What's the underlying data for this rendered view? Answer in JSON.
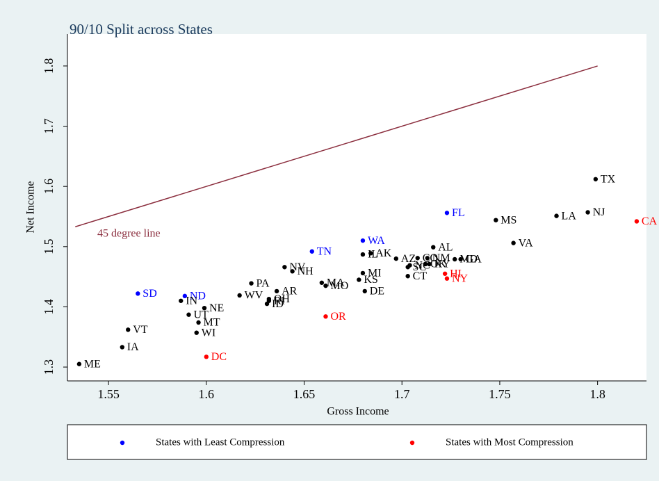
{
  "chart_data": {
    "type": "scatter",
    "title": "90/10 Split across States",
    "x_label": "Gross Income",
    "y_label": "Net Income",
    "xlim": [
      1.529,
      1.825
    ],
    "ylim": [
      1.277,
      1.853
    ],
    "xticks": [
      1.55,
      1.6,
      1.65,
      1.7,
      1.75,
      1.8
    ],
    "yticks": [
      1.3,
      1.4,
      1.5,
      1.6,
      1.7,
      1.8
    ],
    "reference_line": {
      "label": "45 degree line",
      "color": "#8b2e3e",
      "x": [
        1.533,
        1.8
      ],
      "y": [
        1.533,
        1.8
      ]
    },
    "series": [
      {
        "name": "States with Least Compression",
        "color": "#0000ff",
        "labels": [
          "FL",
          "WA",
          "TN",
          "SD",
          "ND"
        ],
        "x": [
          1.723,
          1.68,
          1.654,
          1.565,
          1.589
        ],
        "values": [
          1.556,
          1.51,
          1.492,
          1.422,
          1.418
        ]
      },
      {
        "name": "States with Most Compression",
        "color": "#ff0000",
        "labels": [
          "CA",
          "HI",
          "NY",
          "OR",
          "DC"
        ],
        "x": [
          1.82,
          1.722,
          1.723,
          1.661,
          1.6
        ],
        "values": [
          1.542,
          1.455,
          1.447,
          1.384,
          1.317
        ]
      },
      {
        "color": "#000000",
        "labels": [
          "TX",
          "NJ",
          "LA",
          "MS",
          "VA",
          "AL",
          "GA",
          "MD",
          "AZ",
          "CO",
          "NM",
          "KY",
          "OK",
          "SC",
          "NC",
          "AK",
          "IL",
          "MI",
          "KS",
          "CT",
          "DE",
          "MO",
          "MA",
          "NV",
          "NH",
          "PA",
          "AR",
          "OH",
          "RI",
          "ID",
          "WV",
          "IN",
          "NE",
          "UT",
          "MT",
          "WI",
          "VT",
          "IA",
          "ME"
        ],
        "x": [
          1.799,
          1.795,
          1.779,
          1.748,
          1.757,
          1.716,
          1.73,
          1.727,
          1.697,
          1.708,
          1.713,
          1.714,
          1.712,
          1.703,
          1.704,
          1.684,
          1.68,
          1.68,
          1.678,
          1.703,
          1.681,
          1.661,
          1.659,
          1.64,
          1.644,
          1.623,
          1.636,
          1.632,
          1.632,
          1.631,
          1.617,
          1.587,
          1.599,
          1.591,
          1.596,
          1.595,
          1.56,
          1.557,
          1.535
        ],
        "values": [
          1.612,
          1.557,
          1.551,
          1.544,
          1.506,
          1.499,
          1.479,
          1.479,
          1.48,
          1.481,
          1.481,
          1.471,
          1.471,
          1.466,
          1.469,
          1.489,
          1.487,
          1.456,
          1.445,
          1.451,
          1.426,
          1.435,
          1.44,
          1.466,
          1.459,
          1.439,
          1.426,
          1.413,
          1.41,
          1.405,
          1.419,
          1.41,
          1.398,
          1.387,
          1.374,
          1.357,
          1.362,
          1.333,
          1.305
        ]
      }
    ]
  }
}
